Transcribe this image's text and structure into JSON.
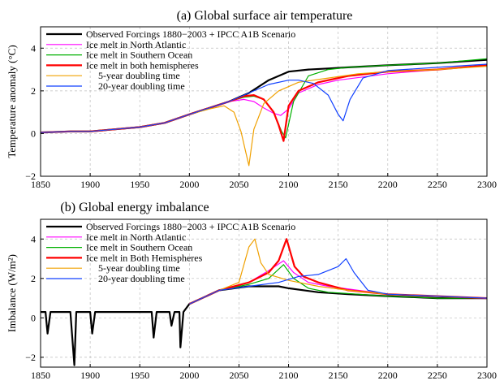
{
  "chart_data": [
    {
      "type": "line",
      "title": "(a) Global surface air temperature",
      "xlabel": "",
      "ylabel": "Temperature anomaly (°C)",
      "xlim": [
        1850,
        2300
      ],
      "ylim": [
        -2,
        5
      ],
      "xticks": [
        "1850",
        "1900",
        "1950",
        "2000",
        "2050",
        "2100",
        "2150",
        "2200",
        "2250",
        "2300"
      ],
      "yticks": [
        "−2",
        "0",
        "2",
        "4"
      ],
      "grid": true,
      "legend_position": "top-left",
      "series": [
        {
          "name": "Observed Forcings 1880−2003 + IPCC A1B Scenario",
          "color": "#000000",
          "width": 2.2,
          "x": [
            1850,
            1880,
            1900,
            1950,
            1975,
            2000,
            2020,
            2040,
            2060,
            2080,
            2100,
            2120,
            2140,
            2160,
            2180,
            2200,
            2250,
            2300
          ],
          "y": [
            0.05,
            0.1,
            0.1,
            0.3,
            0.5,
            0.9,
            1.2,
            1.5,
            1.9,
            2.5,
            2.9,
            3.0,
            3.05,
            3.1,
            3.15,
            3.2,
            3.3,
            3.45
          ]
        },
        {
          "name": "Ice melt in North Atlantic",
          "color": "#ff00ff",
          "width": 1.2,
          "x": [
            1850,
            1880,
            1900,
            1950,
            1975,
            2000,
            2020,
            2040,
            2055,
            2065,
            2075,
            2085,
            2092,
            2100,
            2110,
            2130,
            2150,
            2200,
            2250,
            2300
          ],
          "y": [
            0.05,
            0.1,
            0.1,
            0.3,
            0.5,
            0.9,
            1.2,
            1.5,
            1.6,
            1.5,
            1.2,
            0.95,
            0.85,
            1.15,
            1.9,
            2.3,
            2.5,
            2.8,
            3.0,
            3.2
          ]
        },
        {
          "name": "Ice melt in Southern Ocean",
          "color": "#00b000",
          "width": 1.2,
          "x": [
            1850,
            1880,
            1900,
            1950,
            1975,
            2000,
            2020,
            2040,
            2055,
            2065,
            2075,
            2085,
            2093,
            2097,
            2105,
            2120,
            2140,
            2160,
            2200,
            2250,
            2300
          ],
          "y": [
            0.05,
            0.1,
            0.1,
            0.3,
            0.5,
            0.9,
            1.2,
            1.5,
            1.7,
            1.75,
            1.6,
            1.0,
            0.1,
            -0.2,
            1.5,
            2.7,
            3.0,
            3.1,
            3.2,
            3.3,
            3.5
          ]
        },
        {
          "name": "Ice melt in both hemispheres",
          "color": "#ff0000",
          "width": 2.2,
          "x": [
            1850,
            1880,
            1900,
            1950,
            1975,
            2000,
            2020,
            2040,
            2055,
            2065,
            2075,
            2085,
            2090,
            2095,
            2100,
            2110,
            2130,
            2160,
            2200,
            2250,
            2300
          ],
          "y": [
            0.05,
            0.1,
            0.1,
            0.3,
            0.5,
            0.9,
            1.2,
            1.5,
            1.75,
            1.8,
            1.6,
            1.0,
            0.4,
            -0.35,
            1.3,
            2.0,
            2.4,
            2.7,
            2.9,
            3.0,
            3.2
          ]
        },
        {
          "name": "5-year doubling time",
          "color": "#f0a000",
          "width": 1.2,
          "x": [
            1850,
            1880,
            1900,
            1950,
            1975,
            2000,
            2020,
            2035,
            2045,
            2052,
            2057,
            2060,
            2065,
            2075,
            2090,
            2110,
            2140,
            2170,
            2200,
            2250,
            2300
          ],
          "y": [
            0.05,
            0.1,
            0.1,
            0.3,
            0.5,
            0.9,
            1.15,
            1.3,
            1.0,
            0.1,
            -0.9,
            -1.5,
            0.2,
            1.4,
            2.0,
            2.4,
            2.6,
            2.8,
            2.9,
            3.0,
            3.15
          ]
        },
        {
          "name": "20-year doubling time",
          "color": "#1040ff",
          "width": 1.2,
          "x": [
            1850,
            1880,
            1900,
            1950,
            1975,
            2000,
            2020,
            2040,
            2060,
            2080,
            2100,
            2110,
            2125,
            2140,
            2150,
            2155,
            2162,
            2175,
            2200,
            2250,
            2300
          ],
          "y": [
            0.05,
            0.1,
            0.1,
            0.3,
            0.5,
            0.9,
            1.2,
            1.5,
            1.9,
            2.3,
            2.5,
            2.5,
            2.35,
            1.8,
            0.9,
            0.6,
            1.6,
            2.6,
            2.95,
            3.1,
            3.25
          ]
        }
      ]
    },
    {
      "type": "line",
      "title": "(b) Global energy imbalance",
      "xlabel": "",
      "ylabel": "Imbalance (W/m²)",
      "xlim": [
        1850,
        2300
      ],
      "ylim": [
        -2.5,
        5
      ],
      "xticks": [
        "1850",
        "1900",
        "1950",
        "2000",
        "2050",
        "2100",
        "2150",
        "2200",
        "2250",
        "2300"
      ],
      "yticks": [
        "−2",
        "0",
        "2",
        "4"
      ],
      "grid": true,
      "legend_position": "top-left",
      "series": [
        {
          "name": "Observed Forcings 1880−2003 + IPCC A1B Scenario",
          "color": "#000000",
          "width": 2.2,
          "x": [
            1850,
            1855,
            1857,
            1860,
            1880,
            1884,
            1886,
            1890,
            1900,
            1902,
            1905,
            1920,
            1950,
            1962,
            1964,
            1967,
            1980,
            1982,
            1985,
            1990,
            1991,
            1994,
            2000,
            2030,
            2060,
            2090,
            2100,
            2130,
            2160,
            2200,
            2250,
            2300
          ],
          "y": [
            0.3,
            0.3,
            -0.8,
            0.3,
            0.3,
            -2.4,
            0.3,
            0.3,
            0.3,
            -0.8,
            0.3,
            0.3,
            0.3,
            0.3,
            -1.0,
            0.3,
            0.3,
            -0.4,
            0.3,
            0.3,
            -1.5,
            0.3,
            0.7,
            1.4,
            1.6,
            1.6,
            1.5,
            1.3,
            1.2,
            1.1,
            1.0,
            1.0
          ]
        },
        {
          "name": "Ice melt in North Atlantic",
          "color": "#ff00ff",
          "width": 1.2,
          "x": [
            2000,
            2030,
            2060,
            2080,
            2095,
            2105,
            2120,
            2140,
            2170,
            2200,
            2250,
            2300
          ],
          "y": [
            0.7,
            1.4,
            1.8,
            2.4,
            2.9,
            2.3,
            1.8,
            1.6,
            1.4,
            1.2,
            1.1,
            1.0
          ]
        },
        {
          "name": "Ice melt in Southern Ocean",
          "color": "#00b000",
          "width": 1.2,
          "x": [
            2000,
            2030,
            2060,
            2080,
            2095,
            2105,
            2120,
            2140,
            2170,
            2200,
            2250,
            2300
          ],
          "y": [
            0.7,
            1.4,
            1.7,
            2.0,
            2.7,
            2.0,
            1.5,
            1.3,
            1.2,
            1.1,
            1.0,
            1.0
          ]
        },
        {
          "name": "Ice melt in Both Hemispheres",
          "color": "#ff0000",
          "width": 2.2,
          "x": [
            2000,
            2030,
            2060,
            2080,
            2090,
            2098,
            2106,
            2115,
            2130,
            2160,
            2200,
            2250,
            2300
          ],
          "y": [
            0.7,
            1.4,
            1.8,
            2.3,
            2.9,
            4.0,
            2.6,
            2.1,
            1.8,
            1.4,
            1.2,
            1.1,
            1.0
          ]
        },
        {
          "name": "5-year doubling time",
          "color": "#f0a000",
          "width": 1.2,
          "x": [
            2000,
            2030,
            2050,
            2060,
            2066,
            2072,
            2080,
            2100,
            2130,
            2160,
            2200,
            2250,
            2300
          ],
          "y": [
            0.7,
            1.4,
            1.8,
            3.6,
            4.0,
            2.8,
            2.2,
            1.9,
            1.6,
            1.4,
            1.2,
            1.1,
            1.0
          ]
        },
        {
          "name": "20-year doubling time",
          "color": "#1040ff",
          "width": 1.2,
          "x": [
            2000,
            2030,
            2060,
            2090,
            2110,
            2130,
            2150,
            2158,
            2166,
            2180,
            2200,
            2250,
            2300
          ],
          "y": [
            0.7,
            1.4,
            1.6,
            1.8,
            2.1,
            2.2,
            2.6,
            3.0,
            2.3,
            1.4,
            1.2,
            1.1,
            1.0
          ]
        }
      ]
    }
  ]
}
